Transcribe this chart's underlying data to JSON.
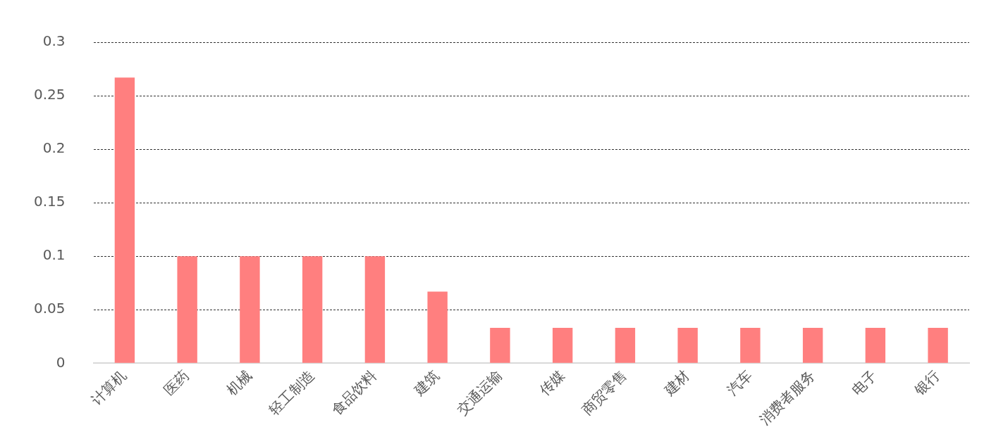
{
  "chart_data": {
    "type": "bar",
    "categories": [
      "计算机",
      "医药",
      "机械",
      "轻工制造",
      "食品饮料",
      "建筑",
      "交通运输",
      "传媒",
      "商贸零售",
      "建材",
      "汽车",
      "消费者服务",
      "电子",
      "银行"
    ],
    "values": [
      0.267,
      0.1,
      0.1,
      0.1,
      0.1,
      0.067,
      0.033,
      0.033,
      0.033,
      0.033,
      0.033,
      0.033,
      0.033,
      0.033
    ],
    "color": "#ff7f7f",
    "ylim": [
      0,
      0.3
    ],
    "yticks": [
      0,
      0.05,
      0.1,
      0.15,
      0.2,
      0.25,
      0.3
    ],
    "grid": "y",
    "legend": false
  }
}
